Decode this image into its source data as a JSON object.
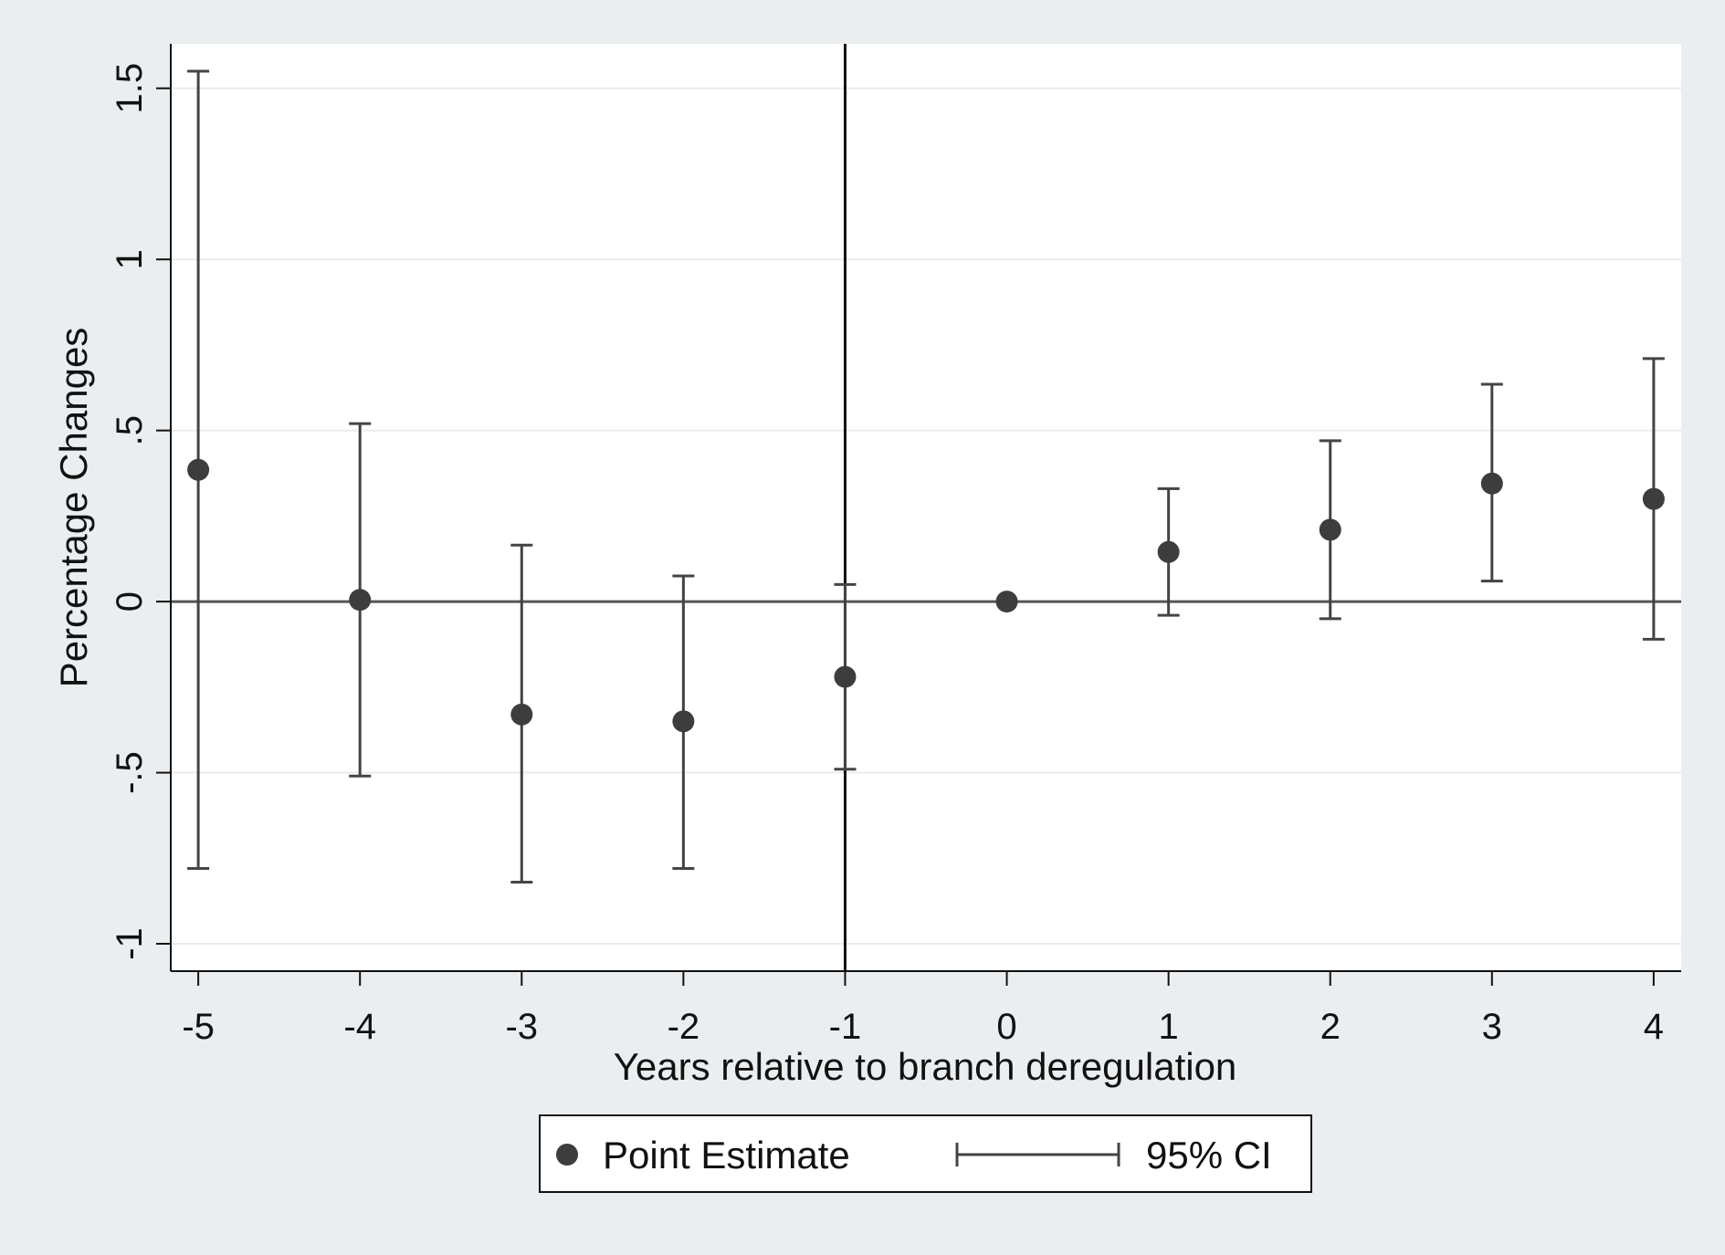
{
  "chart_data": {
    "type": "scatter",
    "title": "",
    "xlabel": "Years relative to branch deregulation",
    "ylabel": "Percentage Changes",
    "xlim": [
      -5.17,
      4.17
    ],
    "ylim": [
      -1.08,
      1.63
    ],
    "x_ticks": [
      -5,
      -4,
      -3,
      -2,
      -1,
      0,
      1,
      2,
      3,
      4
    ],
    "x_tick_labels": [
      "-5",
      "-4",
      "-3",
      "-2",
      "-1",
      "0",
      "1",
      "2",
      "3",
      "4"
    ],
    "y_ticks": [
      -1,
      -0.5,
      0,
      0.5,
      1,
      1.5
    ],
    "y_tick_labels": [
      "-1",
      "-.5",
      "0",
      ".5",
      "1",
      "1.5"
    ],
    "grid": true,
    "reference_lines": {
      "vertical_x": -1,
      "horizontal_y": 0
    },
    "series": [
      {
        "name": "Point Estimate",
        "x": [
          -5,
          -4,
          -3,
          -2,
          -1,
          0,
          1,
          2,
          3,
          4
        ],
        "y": [
          0.385,
          0.005,
          -0.33,
          -0.35,
          -0.22,
          0.0,
          0.145,
          0.21,
          0.345,
          0.3
        ]
      },
      {
        "name": "95% CI",
        "x": [
          -5,
          -4,
          -3,
          -2,
          -1,
          0,
          1,
          2,
          3,
          4
        ],
        "lower": [
          -0.78,
          -0.51,
          -0.82,
          -0.78,
          -0.49,
          0.0,
          -0.04,
          -0.05,
          0.06,
          -0.11
        ],
        "upper": [
          1.55,
          0.52,
          0.165,
          0.075,
          0.05,
          0.0,
          0.33,
          0.47,
          0.635,
          0.71
        ]
      }
    ],
    "legend": {
      "placement": "bottom-center",
      "items": [
        {
          "label": "Point Estimate",
          "symbol": "dot"
        },
        {
          "label": "95% CI",
          "symbol": "capped-line"
        }
      ]
    },
    "colors": {
      "background": "#ebeef0",
      "plot_area": "#ffffff",
      "marker": "#3d3d3d",
      "ci_line": "#444444",
      "reference_line": "#555555",
      "vertical_line": "#111111",
      "gridline": "#ececec"
    }
  }
}
